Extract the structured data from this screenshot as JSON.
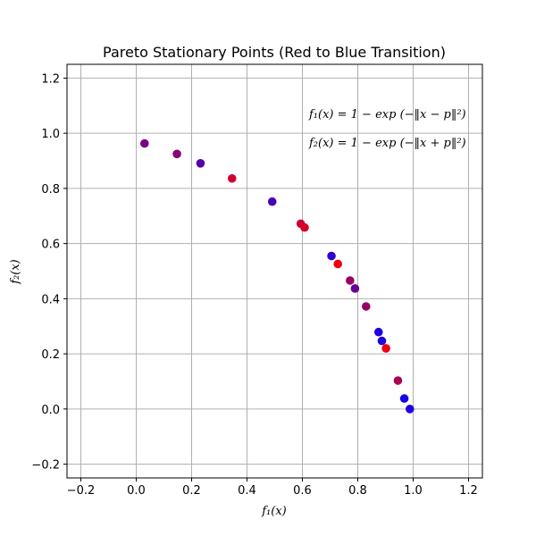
{
  "chart_data": {
    "type": "scatter",
    "title": "Pareto Stationary Points (Red to Blue Transition)",
    "xlabel": "f₁(x)",
    "ylabel": "f₂(x)",
    "xlim": [
      -0.25,
      1.25
    ],
    "ylim": [
      -0.25,
      1.25
    ],
    "xticks": [
      -0.2,
      0.0,
      0.2,
      0.4,
      0.6,
      0.8,
      1.0,
      1.2
    ],
    "yticks": [
      -0.2,
      0.0,
      0.2,
      0.4,
      0.6,
      0.8,
      1.0,
      1.2
    ],
    "xtick_labels": [
      "−0.2",
      "0.0",
      "0.2",
      "0.4",
      "0.6",
      "0.8",
      "1.0",
      "1.2"
    ],
    "ytick_labels": [
      "−0.2",
      "0.0",
      "0.2",
      "0.4",
      "0.6",
      "0.8",
      "1.0",
      "1.2"
    ],
    "grid": true,
    "annotations": [
      "f₁(x) = 1 − exp (−‖x − p‖²)",
      "f₂(x) = 1 − exp (−‖x + p‖²)"
    ],
    "points": [
      {
        "x": 0.03,
        "y": 0.963,
        "color": "#7a0087"
      },
      {
        "x": 0.147,
        "y": 0.925,
        "color": "#8a0075"
      },
      {
        "x": 0.232,
        "y": 0.891,
        "color": "#5500aa"
      },
      {
        "x": 0.346,
        "y": 0.836,
        "color": "#d0002f"
      },
      {
        "x": 0.491,
        "y": 0.752,
        "color": "#4a00b5"
      },
      {
        "x": 0.594,
        "y": 0.672,
        "color": "#cc0033"
      },
      {
        "x": 0.608,
        "y": 0.658,
        "color": "#d8002a"
      },
      {
        "x": 0.705,
        "y": 0.555,
        "color": "#3000cf"
      },
      {
        "x": 0.728,
        "y": 0.526,
        "color": "#ee0011"
      },
      {
        "x": 0.772,
        "y": 0.466,
        "color": "#9a0065"
      },
      {
        "x": 0.79,
        "y": 0.437,
        "color": "#6a0095"
      },
      {
        "x": 0.83,
        "y": 0.372,
        "color": "#990066"
      },
      {
        "x": 0.875,
        "y": 0.279,
        "color": "#1a00e5"
      },
      {
        "x": 0.887,
        "y": 0.247,
        "color": "#2200dd"
      },
      {
        "x": 0.902,
        "y": 0.22,
        "color": "#ee0011"
      },
      {
        "x": 0.945,
        "y": 0.103,
        "color": "#aa0055"
      },
      {
        "x": 0.968,
        "y": 0.038,
        "color": "#1500ea"
      },
      {
        "x": 0.988,
        "y": 0.0,
        "color": "#2000df"
      }
    ]
  }
}
